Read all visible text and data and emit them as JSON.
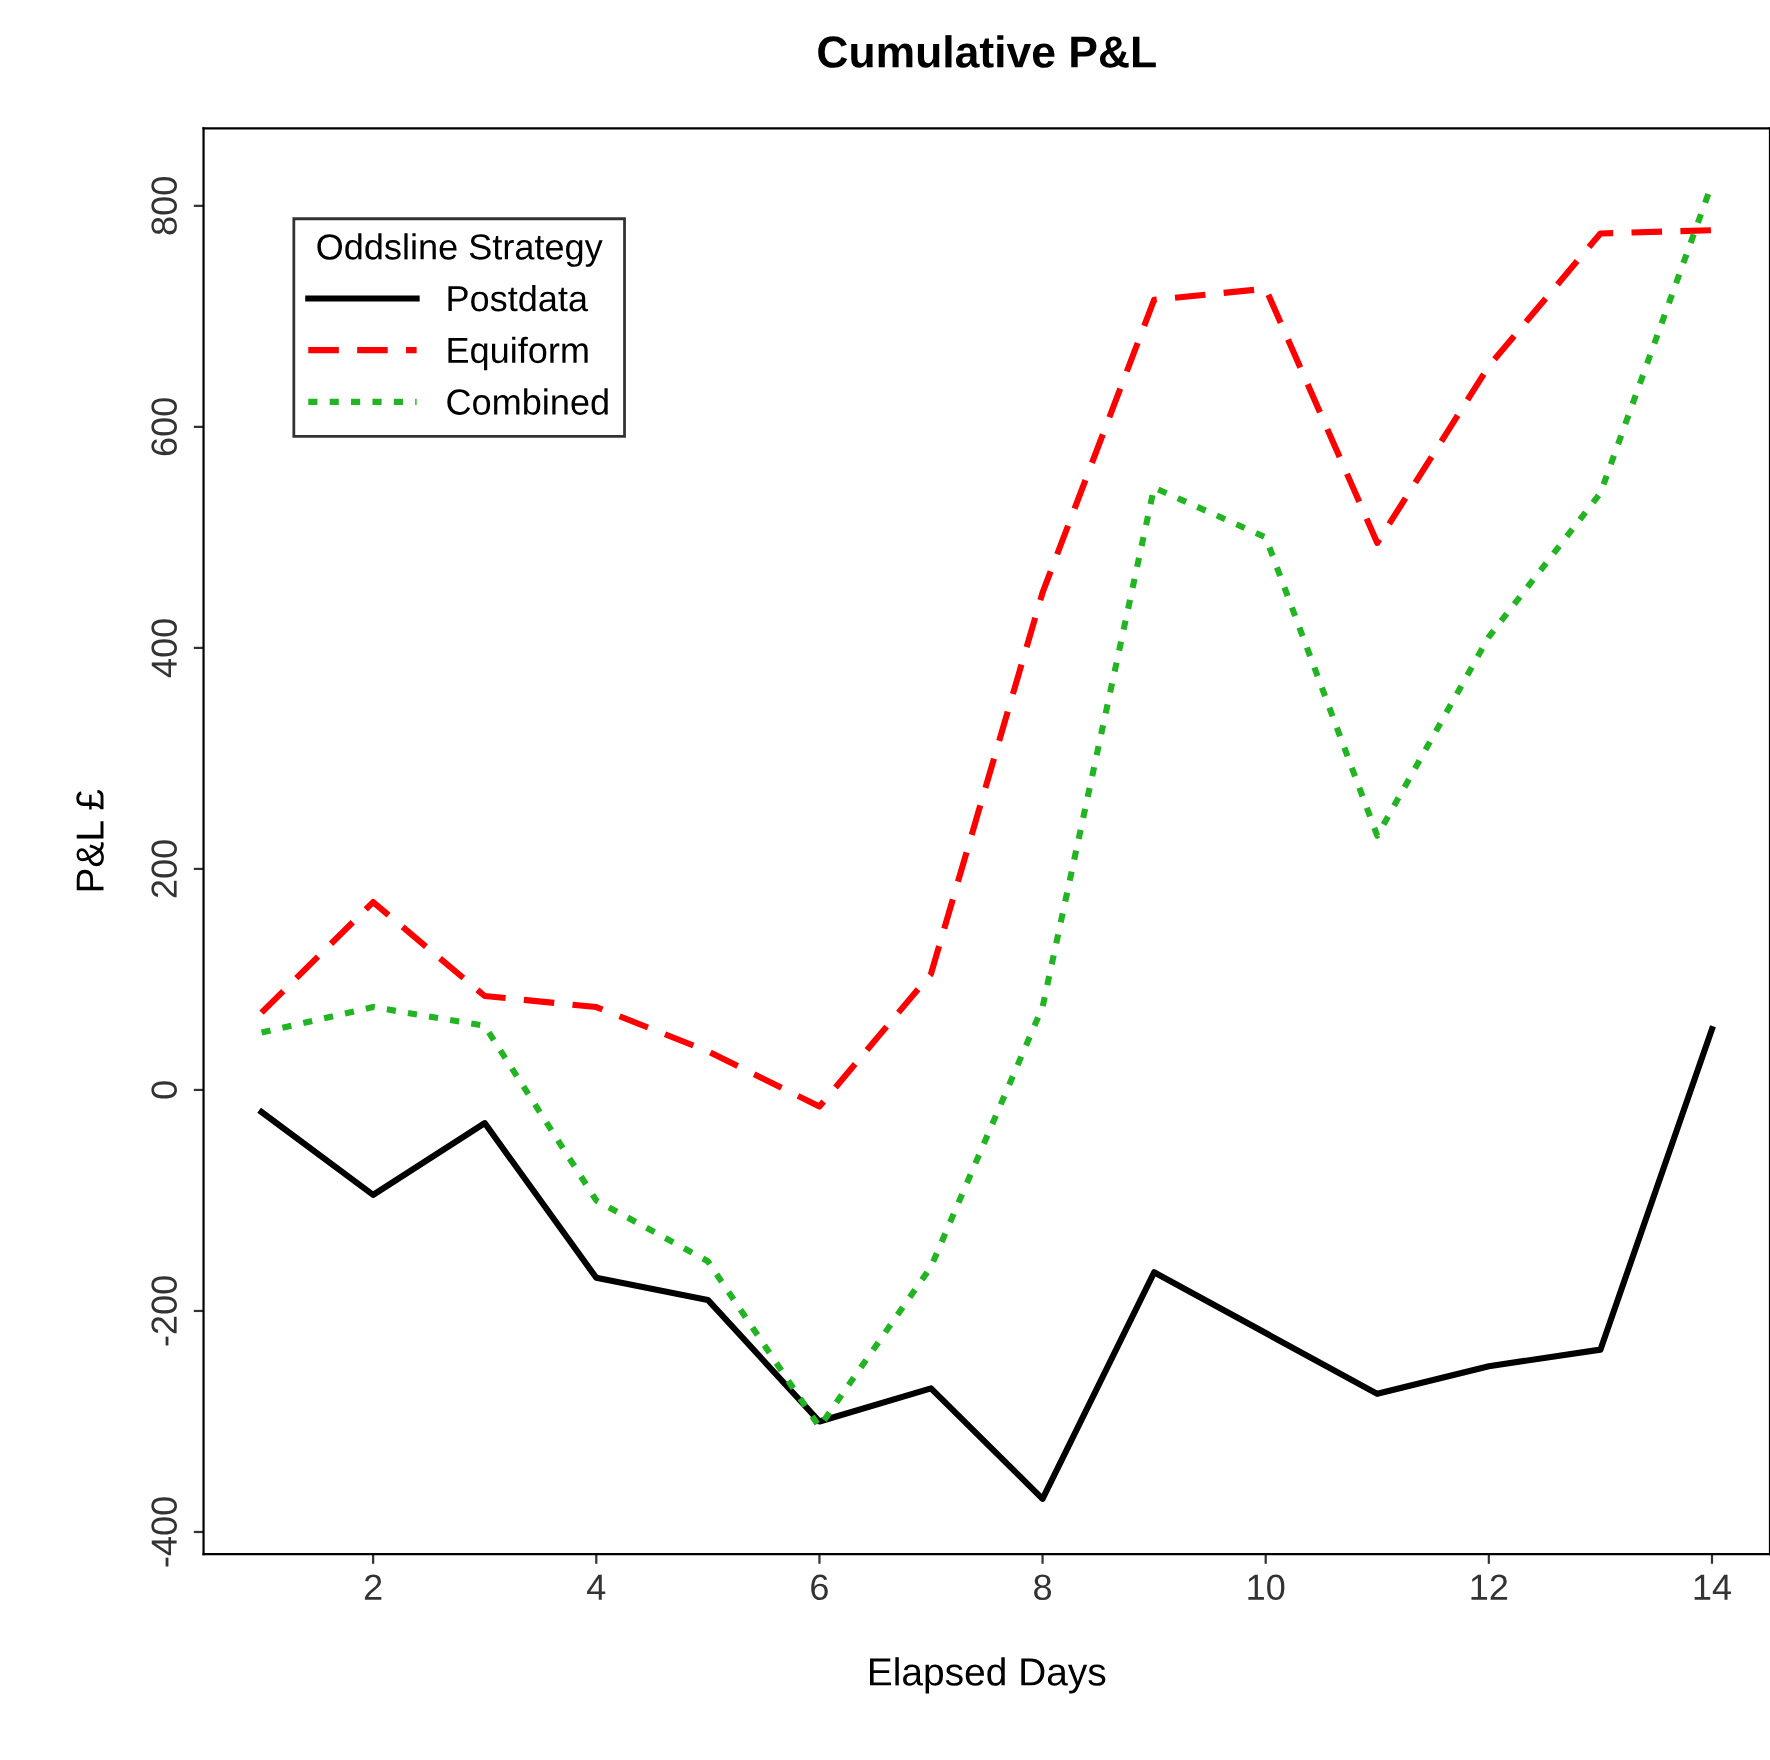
{
  "chart_data": {
    "type": "line",
    "title": "Cumulative P&L",
    "xlabel": "Elapsed Days",
    "ylabel": "P&L £",
    "legend_title": "Oddsline Strategy",
    "legend": "top left",
    "grid": false,
    "marker": "none",
    "x": [
      1,
      2,
      3,
      4,
      5,
      6,
      7,
      8,
      9,
      10,
      11,
      12,
      13,
      14
    ],
    "xlim": [
      0.48,
      14.52
    ],
    "xticks": [
      2,
      4,
      6,
      8,
      10,
      12,
      14
    ],
    "ylim": [
      -420,
      870
    ],
    "yticks": [
      -400,
      -200,
      0,
      200,
      400,
      600,
      800
    ],
    "series": [
      {
        "name": "Postdata",
        "color": "#000000",
        "line_style": "solid",
        "values": [
          -20,
          -95,
          -30,
          -170,
          -190,
          -300,
          -270,
          -370,
          -165,
          -220,
          -275,
          -250,
          -235,
          55
        ]
      },
      {
        "name": "Equiform",
        "color": "#ff0000",
        "line_style": "dashed",
        "values": [
          70,
          170,
          85,
          75,
          35,
          -15,
          105,
          450,
          715,
          725,
          495,
          655,
          775,
          778
        ]
      },
      {
        "name": "Combined",
        "color": "#22b422",
        "line_style": "dotted",
        "values": [
          52,
          75,
          58,
          -100,
          -155,
          -305,
          -160,
          75,
          545,
          500,
          230,
          410,
          540,
          820
        ]
      }
    ]
  }
}
